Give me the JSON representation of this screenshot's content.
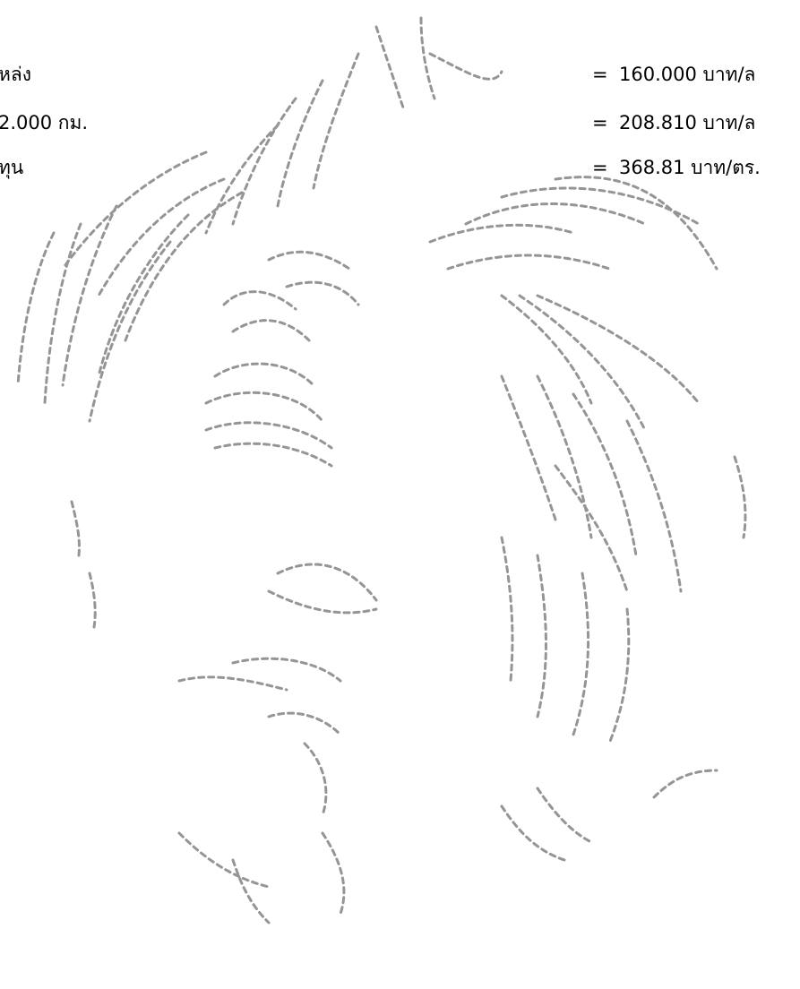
{
  "document": {
    "rows": [
      {
        "label": "หล่ง",
        "equals": "=",
        "value": "160.000 บาท/ล"
      },
      {
        "label": "2.000 กม.",
        "equals": "=",
        "value": "208.810 บาท/ล"
      },
      {
        "label": "ทุน",
        "equals": "=",
        "value": "368.81 บาท/ตร."
      }
    ]
  },
  "watermark": {
    "icon": "garuda-emblem-icon",
    "color": "#8a8a8a"
  }
}
